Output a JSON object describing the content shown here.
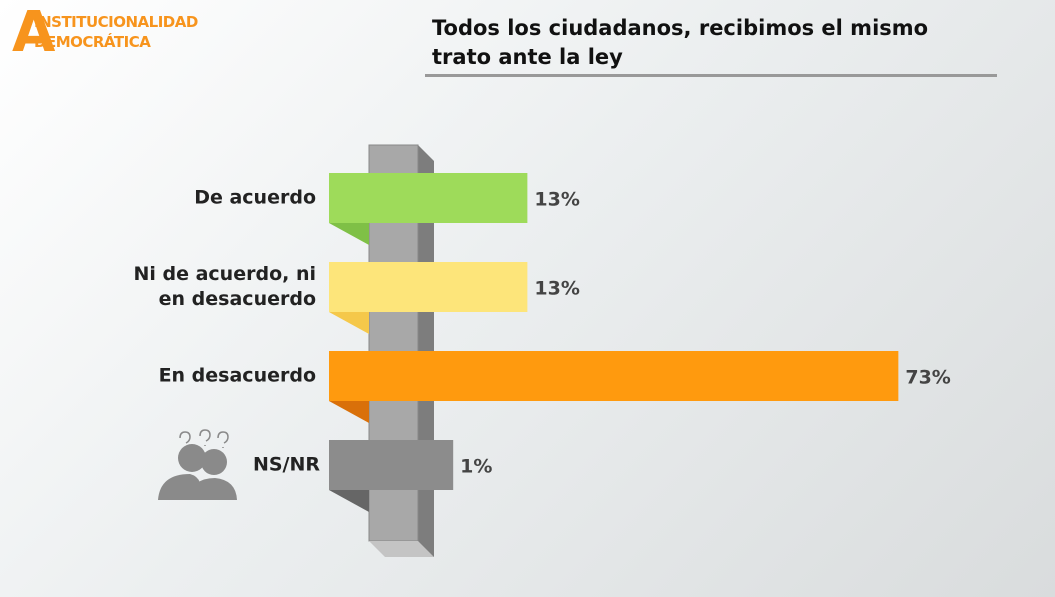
{
  "logo": {
    "letter": "A",
    "line1": "INSTITUCIONALIDAD",
    "line2": "DEMOCRÁTICA"
  },
  "chart_data": {
    "type": "bar",
    "orientation": "horizontal",
    "title": "Todos los ciudadanos, recibimos el mismo trato ante la ley",
    "categories": [
      "De acuerdo",
      "Ni de acuerdo, ni en desacuerdo",
      "En desacuerdo",
      "NS/NR"
    ],
    "values": [
      13,
      13,
      73,
      1
    ],
    "value_labels": [
      "13%",
      "13%",
      "73%",
      "1%"
    ],
    "colors": [
      "#9edb5a",
      "#fde57a",
      "#ff9a0e",
      "#8c8c8c"
    ]
  }
}
